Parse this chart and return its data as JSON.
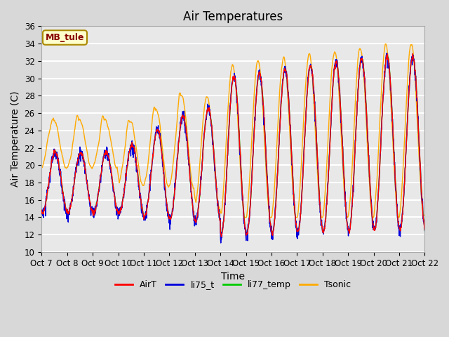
{
  "title": "Air Temperatures",
  "ylabel": "Air Temperature (C)",
  "xlabel": "Time",
  "ylim": [
    10,
    36
  ],
  "site_label": "MB_tule",
  "xtick_labels": [
    "Oct 7",
    "Oct 8",
    "Oct 9",
    "Oct 10",
    "Oct 11",
    "Oct 12",
    "Oct 13",
    "Oct 14",
    "Oct 15",
    "Oct 16",
    "Oct 17",
    "Oct 18",
    "Oct 19",
    "Oct 20",
    "Oct 21",
    "Oct 22"
  ],
  "line_colors": {
    "AirT": "#ff0000",
    "li75_t": "#0000dd",
    "li77_temp": "#00cc00",
    "Tsonic": "#ffaa00"
  },
  "bg_color": "#e8e8e8",
  "grid_color": "#ffffff",
  "site_label_bg": "#ffffcc",
  "site_label_border": "#aa8800",
  "site_label_text_color": "#880000",
  "title_fontsize": 12,
  "axis_fontsize": 10,
  "tick_fontsize": 8.5
}
